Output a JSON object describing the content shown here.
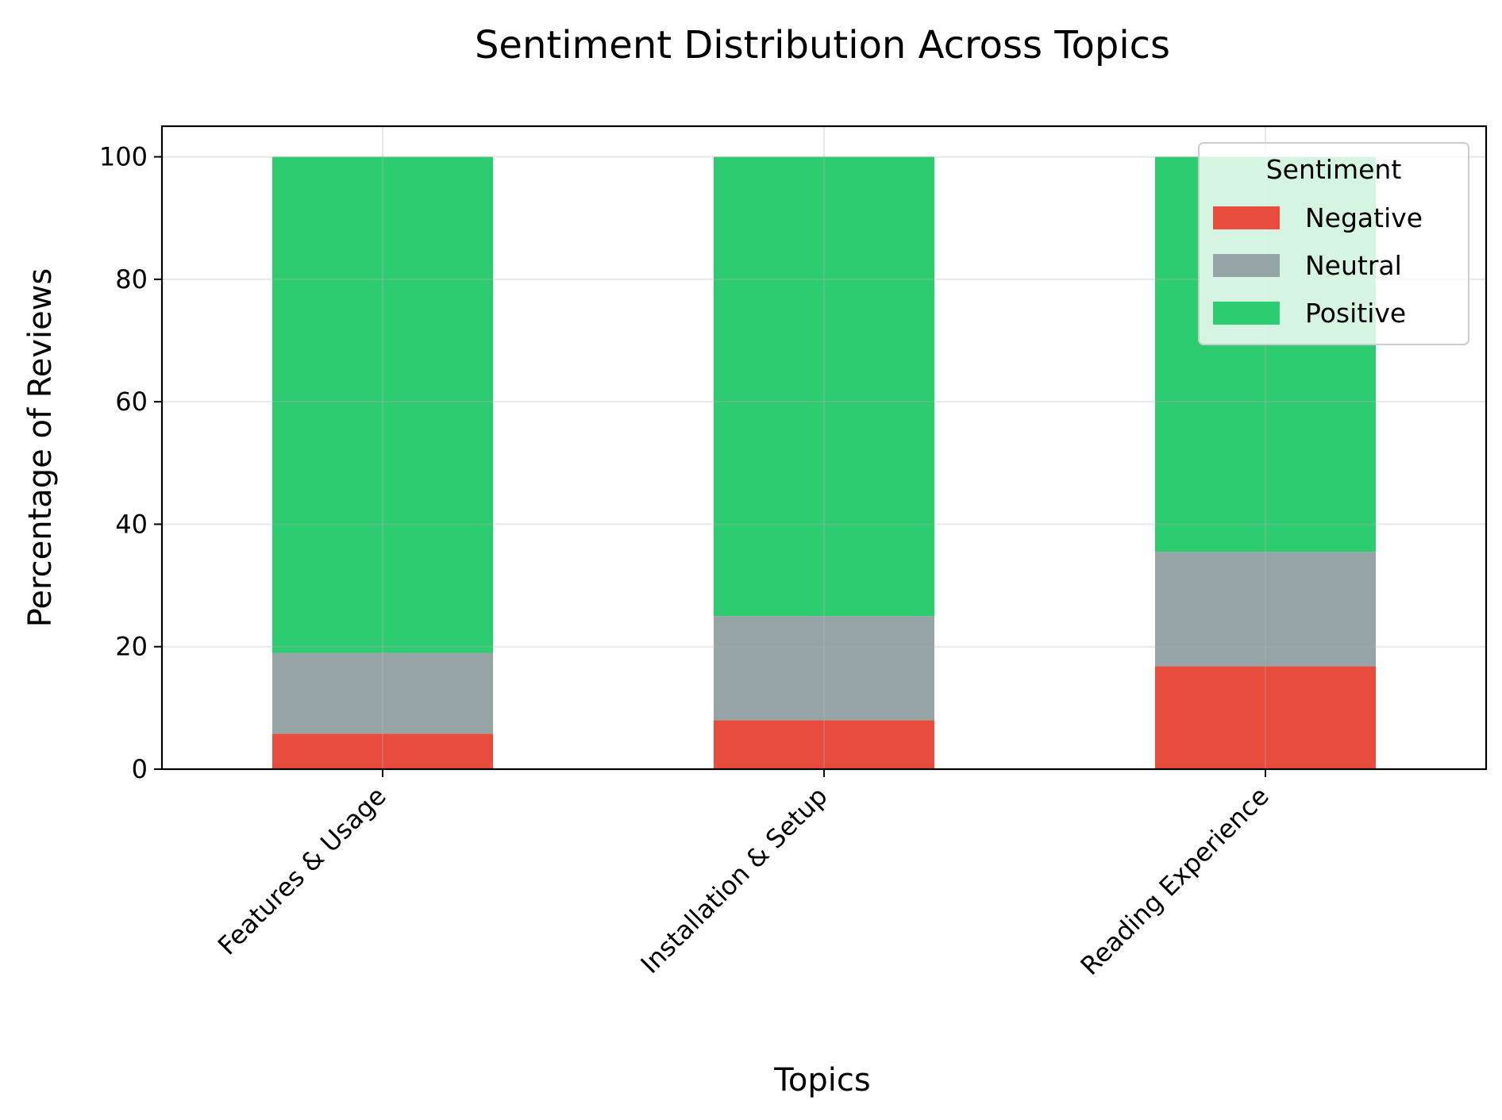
{
  "chart_data": {
    "type": "bar",
    "stacked": true,
    "title": "Sentiment Distribution Across Topics",
    "xlabel": "Topics",
    "ylabel": "Percentage of Reviews",
    "categories": [
      "Features & Usage",
      "Installation & Setup",
      "Reading Experience"
    ],
    "series": [
      {
        "name": "Negative",
        "color": "#e74c3c",
        "values": [
          5.8,
          8.0,
          16.8
        ]
      },
      {
        "name": "Neutral",
        "color": "#95a5a6",
        "values": [
          13.2,
          17.0,
          18.7
        ]
      },
      {
        "name": "Positive",
        "color": "#2ecc71",
        "values": [
          81.0,
          75.0,
          64.5
        ]
      }
    ],
    "ylim": [
      0,
      105
    ],
    "yticks": [
      "0",
      "20",
      "40",
      "60",
      "80",
      "100"
    ],
    "grid": true,
    "legend": {
      "title": "Sentiment",
      "placement": "top-right"
    }
  }
}
